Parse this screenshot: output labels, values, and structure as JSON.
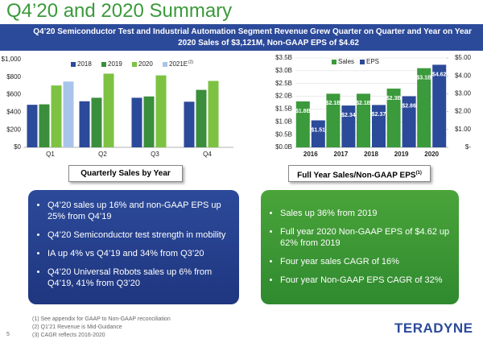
{
  "title": "Q4’20 and 2020 Summary",
  "banner": [
    "Q4’20 Semiconductor Test and Industrial Automation Segment Revenue Grew Quarter on Quarter and Year on Year",
    "2020 Sales of $3,121M, Non-GAAP EPS of $4.62"
  ],
  "chart_data": [
    {
      "type": "bar",
      "caption": "Quarterly Sales by Year",
      "legend_note": "(2)",
      "categories": [
        "Q1",
        "Q2",
        "Q3",
        "Q4"
      ],
      "series": [
        {
          "name": "2018",
          "color": "#2c4a9a",
          "values": [
            485,
            525,
            565,
            520
          ]
        },
        {
          "name": "2019",
          "color": "#3b8e3b",
          "values": [
            490,
            565,
            580,
            655
          ]
        },
        {
          "name": "2020",
          "color": "#7dc242",
          "values": [
            705,
            840,
            820,
            757
          ]
        },
        {
          "name": "2021E",
          "color": "#a9c4ea",
          "values": [
            750,
            null,
            null,
            null
          ]
        }
      ],
      "ylim": [
        0,
        1000
      ],
      "yticks": [
        {
          "value": 0,
          "label": "$0"
        },
        {
          "value": 200,
          "label": "$200"
        },
        {
          "value": 400,
          "label": "$400"
        },
        {
          "value": 600,
          "label": "$600"
        },
        {
          "value": 800,
          "label": "$800"
        },
        {
          "value": 1000,
          "label": "$1,000"
        }
      ],
      "grid": false
    },
    {
      "type": "bar",
      "caption": "Full Year Sales/Non-GAAP EPS",
      "caption_note": "(1)",
      "categories": [
        "2016",
        "2017",
        "2018",
        "2019",
        "2020"
      ],
      "series": [
        {
          "name": "Sales",
          "color": "#3b9a3b",
          "values": [
            1.8,
            2.1,
            2.1,
            2.3,
            3.1
          ],
          "value_labels": [
            "$1.8B",
            "$2.1B",
            "$2.1B",
            "$2.3B",
            "$3.1B"
          ]
        },
        {
          "name": "EPS",
          "color": "#2c4a9a",
          "axis": "y2",
          "values": [
            1.51,
            2.34,
            2.37,
            2.86,
            4.62
          ],
          "value_labels": [
            "$1.51",
            "$2.34",
            "$2.37",
            "$2.86",
            "$4.62"
          ]
        }
      ],
      "ylim": [
        0,
        3.5
      ],
      "yticks": [
        {
          "value": 0,
          "label": "$0.0B"
        },
        {
          "value": 0.5,
          "label": "$0.5B"
        },
        {
          "value": 1,
          "label": "$1.0B"
        },
        {
          "value": 1.5,
          "label": "$1.5B"
        },
        {
          "value": 2,
          "label": "$2.0B"
        },
        {
          "value": 2.5,
          "label": "$2.5B"
        },
        {
          "value": 3,
          "label": "$3.0B"
        },
        {
          "value": 3.5,
          "label": "$3.5B"
        }
      ],
      "y2lim": [
        0,
        5
      ],
      "y2ticks": [
        {
          "value": 0,
          "label": "$-"
        },
        {
          "value": 1,
          "label": "$1.00"
        },
        {
          "value": 2,
          "label": "$2.00"
        },
        {
          "value": 3,
          "label": "$3.00"
        },
        {
          "value": 4,
          "label": "$4.00"
        },
        {
          "value": 5,
          "label": "$5.00"
        }
      ],
      "grid": true
    }
  ],
  "left_box": [
    "Q4’20 sales up 16% and non-GAAP EPS up 25% from Q4’19",
    "Q4’20 Semiconductor test strength in mobility",
    "IA up 4% vs Q4’19 and 34% from Q3’20",
    "Q4’20 Universal Robots sales up 6% from Q4’19, 41% from Q3’20"
  ],
  "right_box": [
    "Sales up 36% from 2019",
    "Full year 2020 Non-GAAP EPS of $4.62 up 62% from 2019",
    "Four year sales CAGR of 16%",
    "Four year Non-GAAP EPS CAGR of 32%"
  ],
  "footnotes": [
    "(1)  See appendix for GAAP to Non-GAAP reconciliation",
    "(2)  Q1’21 Revenue is Mid-Guidance",
    "(3)  CAGR reflects 2016-2020"
  ],
  "page_number": 5,
  "logo": "TERADYNE"
}
